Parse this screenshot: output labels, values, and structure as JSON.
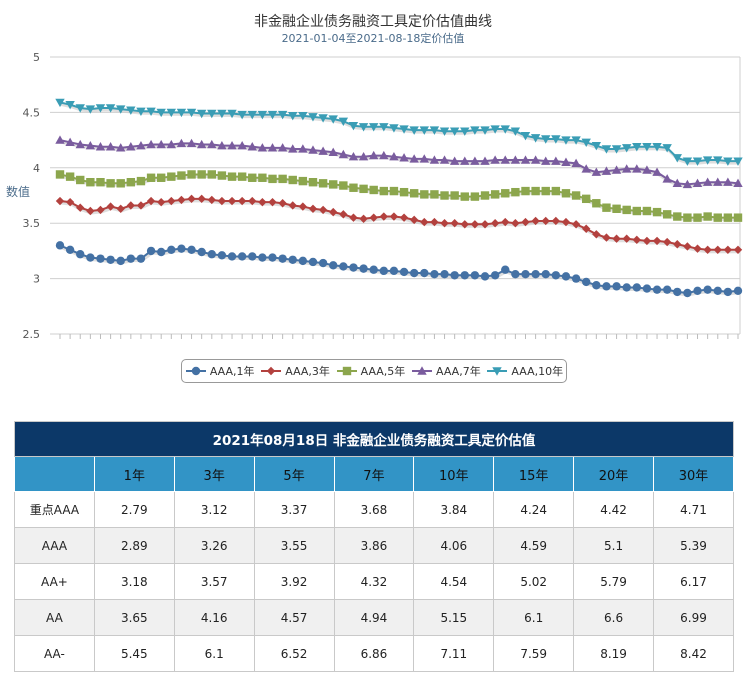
{
  "chart_data": {
    "type": "line",
    "title": "非金融企业债务融资工具定价估值曲线",
    "subtitle": "2021-01-04至2021-08-18定价估值",
    "ylabel": "数值",
    "ylim": [
      2.5,
      5
    ],
    "yticks": [
      "2.5",
      "3",
      "3.5",
      "4",
      "4.5",
      "5"
    ],
    "grid": true,
    "legend_position": "bottom",
    "series": [
      {
        "name": "AAA,1年",
        "color": "#4471a4",
        "marker": "circle",
        "values": [
          3.3,
          3.26,
          3.22,
          3.19,
          3.18,
          3.17,
          3.16,
          3.18,
          3.18,
          3.25,
          3.24,
          3.26,
          3.27,
          3.26,
          3.24,
          3.22,
          3.21,
          3.2,
          3.2,
          3.2,
          3.19,
          3.19,
          3.18,
          3.17,
          3.16,
          3.15,
          3.14,
          3.12,
          3.11,
          3.1,
          3.09,
          3.08,
          3.07,
          3.07,
          3.06,
          3.05,
          3.05,
          3.04,
          3.04,
          3.03,
          3.03,
          3.03,
          3.02,
          3.03,
          3.08,
          3.04,
          3.04,
          3.04,
          3.04,
          3.03,
          3.02,
          3.0,
          2.97,
          2.94,
          2.93,
          2.93,
          2.92,
          2.92,
          2.91,
          2.9,
          2.9,
          2.88,
          2.87,
          2.89,
          2.9,
          2.89,
          2.88,
          2.89
        ]
      },
      {
        "name": "AAA,3年",
        "color": "#b3413e",
        "marker": "diamond",
        "values": [
          3.7,
          3.69,
          3.64,
          3.61,
          3.62,
          3.65,
          3.63,
          3.66,
          3.66,
          3.7,
          3.69,
          3.7,
          3.71,
          3.72,
          3.72,
          3.71,
          3.7,
          3.7,
          3.7,
          3.7,
          3.69,
          3.69,
          3.68,
          3.66,
          3.65,
          3.63,
          3.62,
          3.6,
          3.58,
          3.55,
          3.54,
          3.55,
          3.56,
          3.56,
          3.55,
          3.53,
          3.51,
          3.51,
          3.5,
          3.5,
          3.49,
          3.49,
          3.49,
          3.5,
          3.51,
          3.5,
          3.51,
          3.52,
          3.52,
          3.52,
          3.51,
          3.49,
          3.45,
          3.4,
          3.37,
          3.36,
          3.36,
          3.35,
          3.34,
          3.34,
          3.33,
          3.31,
          3.29,
          3.27,
          3.26,
          3.26,
          3.26,
          3.26
        ]
      },
      {
        "name": "AAA,5年",
        "color": "#8ca64d",
        "marker": "square",
        "values": [
          3.94,
          3.92,
          3.89,
          3.87,
          3.87,
          3.86,
          3.86,
          3.87,
          3.88,
          3.91,
          3.91,
          3.92,
          3.93,
          3.94,
          3.94,
          3.94,
          3.93,
          3.92,
          3.92,
          3.91,
          3.91,
          3.9,
          3.9,
          3.89,
          3.88,
          3.87,
          3.86,
          3.85,
          3.84,
          3.82,
          3.81,
          3.8,
          3.79,
          3.79,
          3.78,
          3.77,
          3.76,
          3.76,
          3.75,
          3.75,
          3.74,
          3.74,
          3.75,
          3.76,
          3.77,
          3.78,
          3.79,
          3.79,
          3.79,
          3.79,
          3.77,
          3.75,
          3.72,
          3.68,
          3.64,
          3.63,
          3.62,
          3.61,
          3.61,
          3.6,
          3.58,
          3.56,
          3.55,
          3.55,
          3.56,
          3.55,
          3.55,
          3.55
        ]
      },
      {
        "name": "AAA,7年",
        "color": "#7a5c9e",
        "marker": "triangle",
        "values": [
          4.25,
          4.23,
          4.21,
          4.2,
          4.19,
          4.19,
          4.18,
          4.19,
          4.2,
          4.21,
          4.21,
          4.21,
          4.22,
          4.22,
          4.21,
          4.21,
          4.2,
          4.2,
          4.2,
          4.19,
          4.18,
          4.18,
          4.18,
          4.17,
          4.17,
          4.16,
          4.15,
          4.14,
          4.12,
          4.1,
          4.1,
          4.11,
          4.11,
          4.1,
          4.09,
          4.08,
          4.08,
          4.07,
          4.07,
          4.06,
          4.06,
          4.06,
          4.06,
          4.07,
          4.07,
          4.07,
          4.07,
          4.07,
          4.06,
          4.06,
          4.05,
          4.04,
          3.99,
          3.96,
          3.97,
          3.98,
          3.99,
          3.99,
          3.98,
          3.96,
          3.9,
          3.86,
          3.85,
          3.86,
          3.87,
          3.87,
          3.87,
          3.86
        ]
      },
      {
        "name": "AAA,10年",
        "color": "#3a9db5",
        "marker": "triangle-down",
        "values": [
          4.59,
          4.57,
          4.54,
          4.53,
          4.54,
          4.54,
          4.53,
          4.52,
          4.51,
          4.51,
          4.5,
          4.5,
          4.5,
          4.5,
          4.49,
          4.49,
          4.49,
          4.49,
          4.48,
          4.48,
          4.48,
          4.48,
          4.48,
          4.47,
          4.47,
          4.46,
          4.45,
          4.44,
          4.42,
          4.38,
          4.37,
          4.37,
          4.37,
          4.36,
          4.35,
          4.34,
          4.34,
          4.34,
          4.33,
          4.33,
          4.33,
          4.34,
          4.34,
          4.35,
          4.35,
          4.33,
          4.29,
          4.27,
          4.26,
          4.26,
          4.25,
          4.25,
          4.23,
          4.2,
          4.17,
          4.17,
          4.18,
          4.19,
          4.19,
          4.19,
          4.18,
          4.09,
          4.06,
          4.06,
          4.07,
          4.07,
          4.06,
          4.06
        ]
      }
    ]
  },
  "table": {
    "caption": "2021年08月18日  非金融企业债务融资工具定价估值",
    "headers": [
      "",
      "1年",
      "3年",
      "5年",
      "7年",
      "10年",
      "15年",
      "20年",
      "30年"
    ],
    "rows": [
      [
        "重点AAA",
        "2.79",
        "3.12",
        "3.37",
        "3.68",
        "3.84",
        "4.24",
        "4.42",
        "4.71"
      ],
      [
        "AAA",
        "2.89",
        "3.26",
        "3.55",
        "3.86",
        "4.06",
        "4.59",
        "5.1",
        "5.39"
      ],
      [
        "AA+",
        "3.18",
        "3.57",
        "3.92",
        "4.32",
        "4.54",
        "5.02",
        "5.79",
        "6.17"
      ],
      [
        "AA",
        "3.65",
        "4.16",
        "4.57",
        "4.94",
        "5.15",
        "6.1",
        "6.6",
        "6.99"
      ],
      [
        "AA-",
        "5.45",
        "6.1",
        "6.52",
        "6.86",
        "7.11",
        "7.59",
        "8.19",
        "8.42"
      ]
    ]
  }
}
